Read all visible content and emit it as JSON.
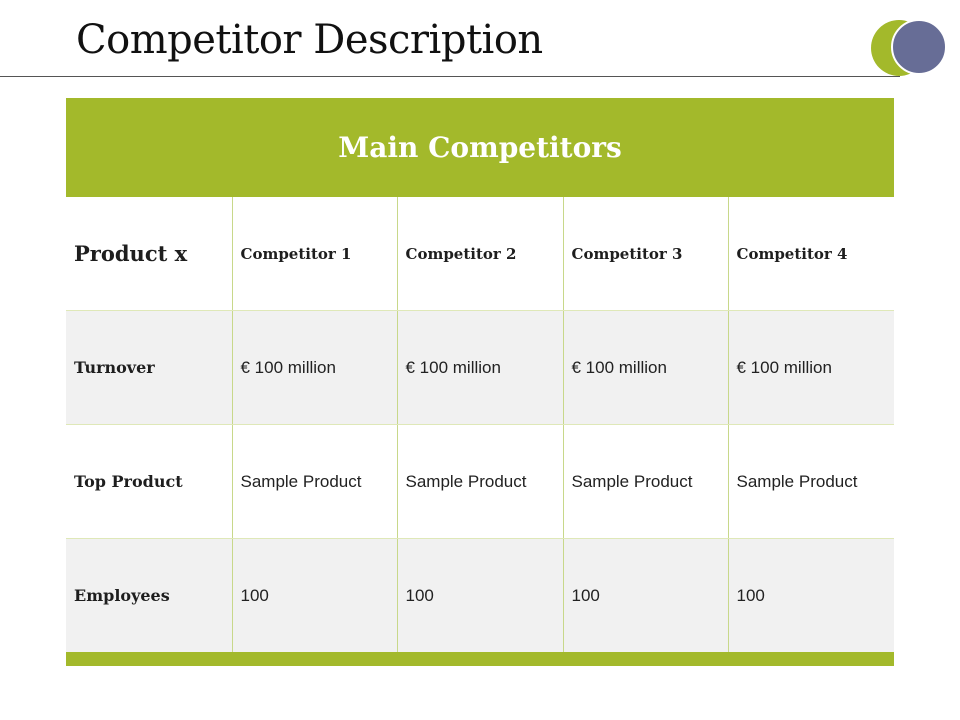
{
  "slide": {
    "title": "Competitor Description"
  },
  "table": {
    "header": "Main Competitors",
    "row_header": "Product x",
    "columns": [
      "Competitor 1",
      "Competitor 2",
      "Competitor 3",
      "Competitor 4"
    ],
    "rows": [
      {
        "label": "Turnover",
        "values": [
          "€ 100 million",
          "€ 100 million",
          "€ 100 million",
          "€ 100 million"
        ]
      },
      {
        "label": "Top Product",
        "values": [
          "Sample Product",
          "Sample Product",
          "Sample Product",
          "Sample Product"
        ]
      },
      {
        "label": "Employees",
        "values": [
          "100",
          "100",
          "100",
          "100"
        ]
      }
    ]
  },
  "colors": {
    "accent_green": "#a3b92b",
    "accent_slate": "#676d96",
    "row_alt": "#f1f1f1"
  }
}
